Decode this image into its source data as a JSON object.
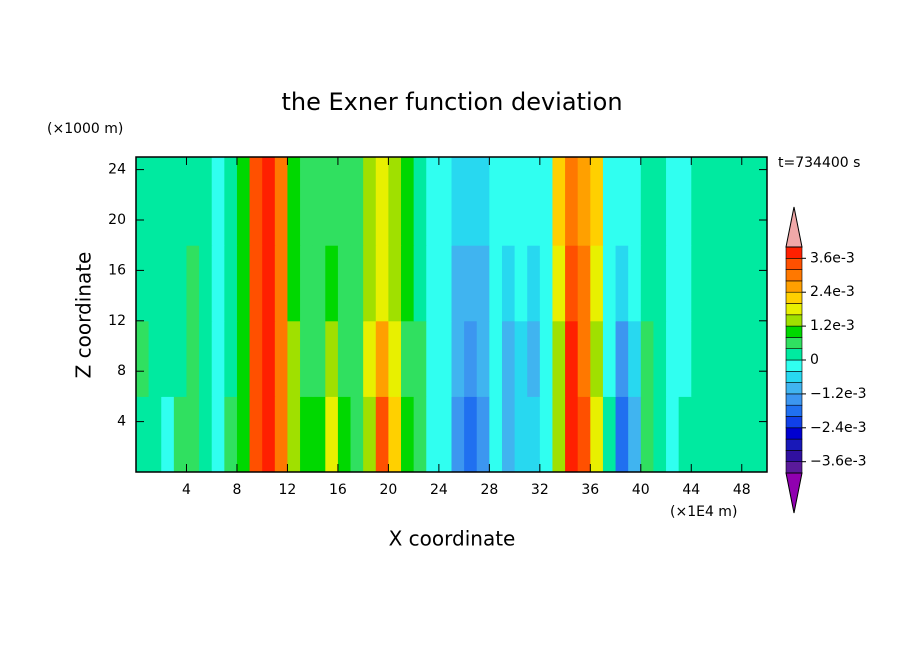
{
  "chart_data": {
    "type": "contour",
    "title": "the Exner function deviation",
    "xlabel": "X coordinate",
    "ylabel": "Z coordinate",
    "xunit": "(×1E4 m)",
    "yunit": "(×1000 m)",
    "time_label": "t=734400 s",
    "xlim": [
      0,
      50
    ],
    "ylim": [
      0,
      25
    ],
    "xticks": [
      4,
      8,
      12,
      16,
      20,
      24,
      28,
      32,
      36,
      40,
      44,
      48
    ],
    "yticks": [
      4,
      8,
      12,
      16,
      20,
      24
    ],
    "xbins": [
      0,
      1,
      2,
      3,
      4,
      5,
      6,
      7,
      8,
      9,
      10,
      11,
      12,
      13,
      14,
      15,
      16,
      17,
      18,
      19,
      20,
      21,
      22,
      23,
      24,
      25,
      26,
      27,
      28,
      29,
      30,
      31,
      32,
      33,
      34,
      35,
      36,
      37,
      38,
      39,
      40,
      41,
      42,
      43,
      44,
      45,
      46,
      47,
      48,
      49,
      50
    ],
    "zbins": [
      0,
      6,
      12,
      18,
      25
    ],
    "values": [
      [
        0.0002,
        0.0003,
        -0.0002,
        0.0004,
        0.0006,
        0.0003,
        -0.0002,
        0.0005,
        0.001,
        0.0032,
        0.0038,
        0.003,
        0.0015,
        0.0008,
        0.0009,
        0.0018,
        0.0008,
        0.0007,
        0.0014,
        0.0034,
        0.002,
        0.0009,
        0.0005,
        -0.0002,
        -0.0003,
        -0.0014,
        -0.0019,
        -0.0013,
        -0.0004,
        -0.001,
        -0.0006,
        -0.0006,
        -0.0003,
        0.0015,
        0.0038,
        0.0033,
        0.0018,
        0.0002,
        -0.0018,
        -0.0009,
        0.0006,
        0.0002,
        -0.0002,
        0.0001,
        0.0002,
        0.0002,
        0.0002,
        0.0002,
        0.0002,
        0.0002
      ],
      [
        0.0005,
        0.0002,
        0.0002,
        0.0003,
        0.0006,
        0.0003,
        -0.0002,
        0.0003,
        0.0009,
        0.0034,
        0.0038,
        0.0028,
        0.0012,
        0.0006,
        0.0007,
        0.0015,
        0.0007,
        0.0006,
        0.0018,
        0.0025,
        0.0016,
        0.0007,
        0.0004,
        -0.0002,
        -0.0003,
        -0.001,
        -0.0014,
        -0.001,
        -0.0003,
        -0.0011,
        -0.0005,
        -0.0009,
        -0.0003,
        0.0014,
        0.0036,
        0.003,
        0.0015,
        -0.0002,
        -0.0013,
        -0.0006,
        0.0005,
        0.0001,
        -0.0002,
        -0.0002,
        0.0002,
        0.0002,
        0.0002,
        0.0002,
        0.0002,
        0.0002
      ],
      [
        0.0002,
        0.0002,
        0.0002,
        0.0002,
        0.0005,
        0.0002,
        -0.0003,
        0.0002,
        0.001,
        0.0034,
        0.0038,
        0.0029,
        0.001,
        0.0007,
        0.0007,
        0.001,
        0.0006,
        0.0007,
        0.0015,
        0.0018,
        0.0013,
        0.0008,
        0.0003,
        -0.0002,
        -0.0003,
        -0.0009,
        -0.0011,
        -0.0009,
        -0.0003,
        -0.0008,
        -0.0004,
        -0.0007,
        -0.0003,
        0.0016,
        0.0032,
        0.0028,
        0.0018,
        -0.0002,
        -0.0008,
        -0.0003,
        0.0003,
        0.0001,
        -0.0002,
        -0.0002,
        0.0002,
        0.0002,
        0.0002,
        0.0002,
        0.0002,
        0.0002
      ],
      [
        0.0002,
        0.0002,
        0.0002,
        0.0002,
        0.0002,
        0.0002,
        -0.0002,
        0.0002,
        0.001,
        0.0034,
        0.0038,
        0.0028,
        0.0009,
        0.0007,
        0.0006,
        0.0006,
        0.0006,
        0.0007,
        0.0014,
        0.0017,
        0.0013,
        0.0009,
        0.0003,
        -0.0002,
        -0.0003,
        -0.0006,
        -0.0008,
        -0.0005,
        -0.0002,
        -0.0003,
        -0.0002,
        -0.0002,
        -0.0002,
        0.002,
        0.003,
        0.0026,
        0.002,
        -0.0002,
        -0.0003,
        -0.0002,
        0.0001,
        0.0001,
        -0.0002,
        -0.0001,
        0.0002,
        0.0002,
        0.0002,
        0.0002,
        0.0002,
        0.0002
      ]
    ],
    "levels": [
      -0.004,
      -0.0036,
      -0.0032,
      -0.0028,
      -0.0024,
      -0.002,
      -0.0016,
      -0.0012,
      -0.0008,
      -0.0004,
      0,
      0.0004,
      0.0008,
      0.0012,
      0.0016,
      0.002,
      0.0024,
      0.0028,
      0.0032,
      0.0036,
      0.004
    ],
    "colors": [
      "#9000b0",
      "#5a1a9a",
      "#3010a0",
      "#1818b8",
      "#0000d0",
      "#1040e8",
      "#2070f0",
      "#3c96f0",
      "#40b4f0",
      "#28d8f0",
      "#30fff0",
      "#00eaa0",
      "#30e060",
      "#00d800",
      "#a0e000",
      "#e8f000",
      "#ffd000",
      "#ffa000",
      "#ff7800",
      "#ff5000",
      "#ff2000",
      "#f0a8a8"
    ],
    "colorbar_ticks": [
      {
        "value": 0.0036,
        "label": "3.6e-3"
      },
      {
        "value": 0.0024,
        "label": "2.4e-3"
      },
      {
        "value": 0.0012,
        "label": "1.2e-3"
      },
      0,
      {
        "value": -0.0012,
        "label": "−1.2e-3"
      },
      {
        "value": -0.0024,
        "label": "−2.4e-3"
      },
      {
        "value": -0.0036,
        "label": "−3.6e-3"
      }
    ]
  }
}
